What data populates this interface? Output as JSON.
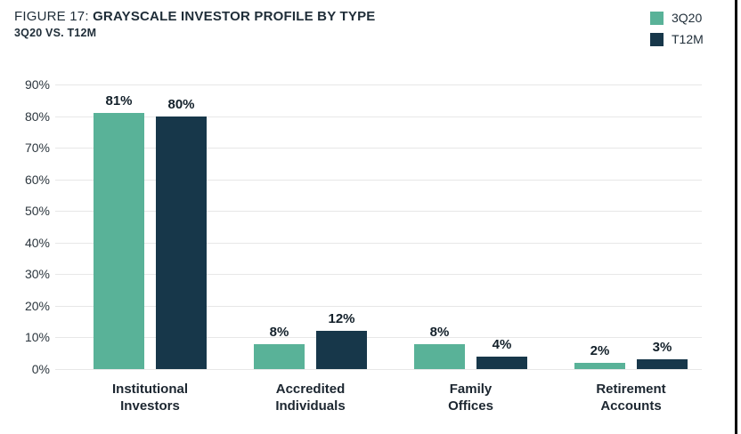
{
  "header": {
    "figure_label": "FIGURE 17:",
    "title": "GRAYSCALE INVESTOR PROFILE BY TYPE",
    "subtitle": "3Q20 VS. T12M"
  },
  "chart_data": {
    "type": "bar",
    "title": "FIGURE 17: GRAYSCALE INVESTOR PROFILE BY TYPE",
    "subtitle": "3Q20 VS. T12M",
    "categories": [
      "Institutional\nInvestors",
      "Accredited\nIndividuals",
      "Family\nOffices",
      "Retirement\nAccounts"
    ],
    "series": [
      {
        "name": "3Q20",
        "color": "#59b298",
        "values": [
          81,
          8,
          8,
          2
        ]
      },
      {
        "name": "T12M",
        "color": "#17374a",
        "values": [
          80,
          12,
          4,
          3
        ]
      }
    ],
    "value_suffix": "%",
    "xlabel": "",
    "ylabel": "",
    "ylim": [
      0,
      90
    ],
    "ytick_step": 10,
    "yticks": [
      "0%",
      "10%",
      "20%",
      "30%",
      "40%",
      "50%",
      "60%",
      "70%",
      "80%",
      "90%"
    ],
    "grid": true,
    "legend_position": "top-right"
  },
  "colors": {
    "series_3q20": "#59b298",
    "series_t12m": "#17374a",
    "gridline": "#e7e7e7",
    "text_dark": "#1f2d38",
    "page_border": "#050505",
    "background": "#ffffff"
  }
}
